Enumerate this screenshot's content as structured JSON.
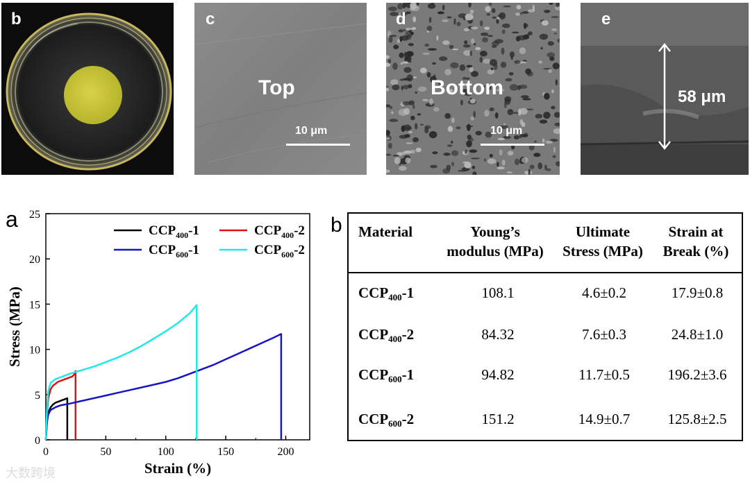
{
  "panels": {
    "a": "a",
    "b_photo": "b",
    "b_table": "b",
    "c": "c",
    "d": "d",
    "e": "e"
  },
  "sem": {
    "top_label": "Top",
    "bottom_label": "Bottom",
    "scale_c": "10 μm",
    "scale_d": "10 μm",
    "thickness": "58 μm"
  },
  "colors": {
    "ccp400_1": "#000000",
    "ccp400_2": "#e01010",
    "ccp600_1": "#1515c8",
    "ccp600_2": "#20e8e8"
  },
  "chart_data": {
    "type": "line",
    "title": "",
    "xlabel": "Strain (%)",
    "ylabel": "Stress (MPa)",
    "xlim": [
      0,
      220
    ],
    "ylim": [
      0,
      25
    ],
    "xticks": [
      0,
      50,
      100,
      150,
      200
    ],
    "yticks": [
      0,
      5,
      10,
      15,
      20,
      25
    ],
    "legend": "top-right",
    "series": [
      {
        "name": "CCP400-1",
        "base": "CCP",
        "sub": "400",
        "suffix": "-1",
        "color": "#000000",
        "x": [
          0,
          1,
          2,
          4,
          6,
          8,
          10,
          12,
          14,
          16,
          17.9,
          17.9
        ],
        "y": [
          0,
          2.0,
          3.0,
          3.6,
          3.9,
          4.1,
          4.2,
          4.3,
          4.4,
          4.5,
          4.6,
          0
        ]
      },
      {
        "name": "CCP400-2",
        "base": "CCP",
        "sub": "400",
        "suffix": "-2",
        "color": "#e01010",
        "x": [
          0,
          1,
          2,
          4,
          6,
          8,
          10,
          12,
          14,
          16,
          18,
          20,
          22,
          23.5,
          24.8,
          24.8
        ],
        "y": [
          0,
          3.0,
          4.6,
          5.6,
          6.0,
          6.2,
          6.4,
          6.5,
          6.6,
          6.7,
          6.8,
          6.9,
          7.0,
          7.2,
          7.6,
          0
        ]
      },
      {
        "name": "CCP600-1",
        "base": "CCP",
        "sub": "600",
        "suffix": "-1",
        "color": "#1515c8",
        "x": [
          0,
          1,
          2,
          4,
          8,
          12,
          20,
          30,
          40,
          50,
          60,
          70,
          80,
          90,
          100,
          110,
          120,
          130,
          140,
          150,
          160,
          170,
          180,
          190,
          196.2,
          196.2
        ],
        "y": [
          0,
          2.0,
          2.8,
          3.3,
          3.6,
          3.8,
          4.0,
          4.3,
          4.6,
          4.9,
          5.2,
          5.5,
          5.8,
          6.1,
          6.4,
          6.8,
          7.3,
          7.8,
          8.3,
          8.9,
          9.5,
          10.1,
          10.7,
          11.3,
          11.7,
          0
        ]
      },
      {
        "name": "CCP600-2",
        "base": "CCP",
        "sub": "600",
        "suffix": "-2",
        "color": "#20e8e8",
        "x": [
          0,
          1,
          2,
          4,
          8,
          12,
          16,
          20,
          30,
          40,
          50,
          60,
          70,
          80,
          90,
          100,
          110,
          120,
          125.8,
          125.8
        ],
        "y": [
          0,
          3.5,
          5.4,
          6.3,
          6.7,
          6.9,
          7.1,
          7.3,
          7.7,
          8.1,
          8.6,
          9.1,
          9.7,
          10.4,
          11.2,
          12.0,
          12.9,
          14.0,
          14.9,
          0
        ]
      }
    ]
  },
  "table": {
    "headers": [
      {
        "l1": "Material",
        "l2": ""
      },
      {
        "l1": "Young’s",
        "l2": "modulus (MPa)"
      },
      {
        "l1": "Ultimate",
        "l2": "Stress (MPa)"
      },
      {
        "l1": "Strain at",
        "l2": "Break (%)"
      }
    ],
    "rows": [
      {
        "base": "CCP",
        "sub": "400",
        "suffix": "-1",
        "modulus": "108.1",
        "stress": "4.6±0.2",
        "strain": "17.9±0.8"
      },
      {
        "base": "CCP",
        "sub": "400",
        "suffix": "-2",
        "modulus": "84.32",
        "stress": "7.6±0.3",
        "strain": "24.8±1.0"
      },
      {
        "base": "CCP",
        "sub": "600",
        "suffix": "-1",
        "modulus": "94.82",
        "stress": "11.7±0.5",
        "strain": "196.2±3.6"
      },
      {
        "base": "CCP",
        "sub": "600",
        "suffix": "-2",
        "modulus": "151.2",
        "stress": "14.9±0.7",
        "strain": "125.8±2.5"
      }
    ]
  },
  "watermark": "大数跨境"
}
